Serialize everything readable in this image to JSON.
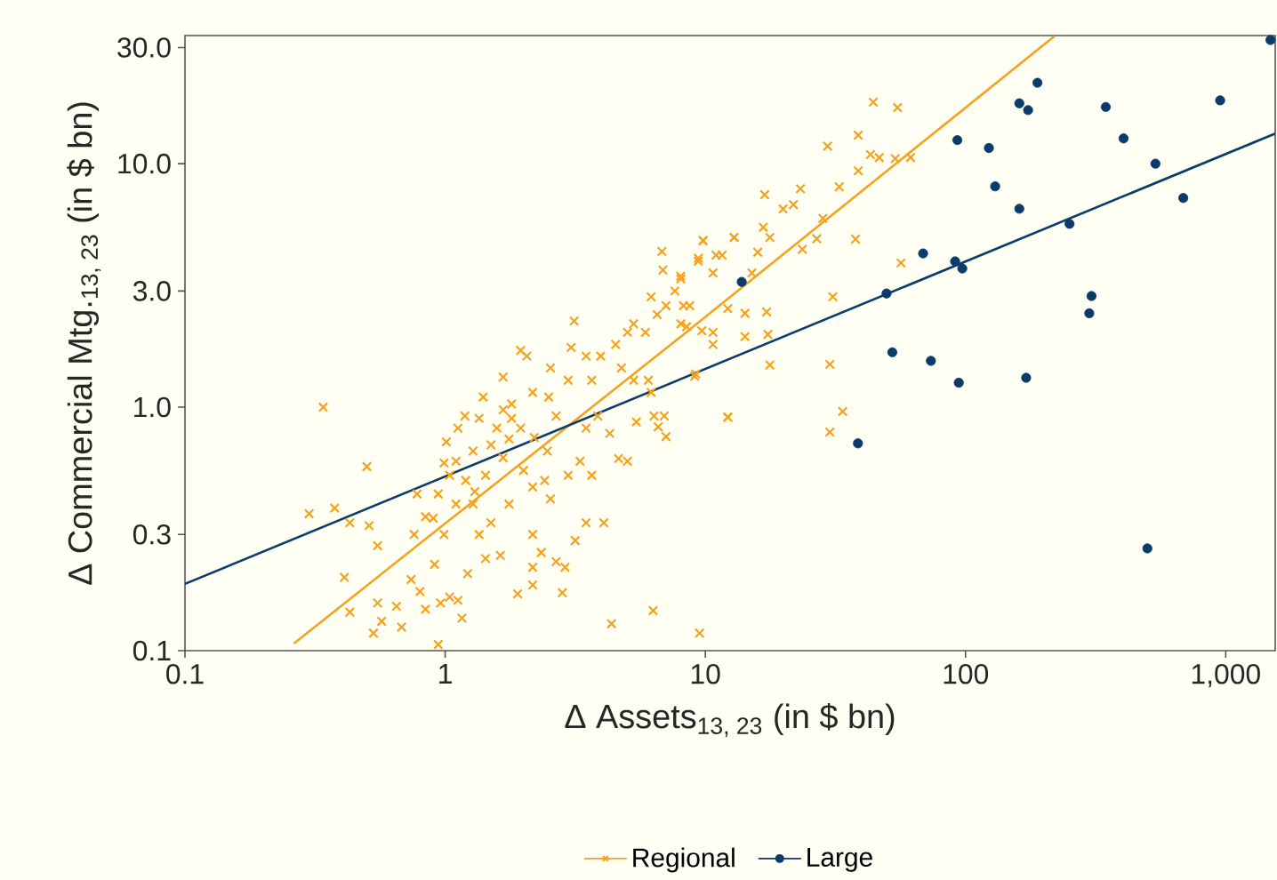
{
  "chart_data": {
    "type": "scatter",
    "xlabel": "Δ Assets$_{13, 23}$ (in $ bn)",
    "ylabel": "Δ Commercial Mtg.$_{13, 23}$ (in $ bn)",
    "log": "xy",
    "xlim": [
      0.1,
      1550
    ],
    "ylim": [
      0.1,
      33.6
    ],
    "xticks": [
      0.1,
      1,
      10,
      100,
      {
        "value": 1000,
        "label": "1,000"
      }
    ],
    "yticks": [
      0.1,
      0.3,
      {
        "value": 1,
        "label": "1.0"
      },
      {
        "value": 3,
        "label": "3.0"
      },
      {
        "value": 10,
        "label": "10.0"
      },
      {
        "value": 30,
        "label": "30.0"
      }
    ],
    "legend": "bottom",
    "series": [
      {
        "name": "Regional",
        "marker": "cross",
        "color": "#f5a21e",
        "x": [
          0.34,
          0.3,
          0.376,
          0.5,
          0.43,
          0.51,
          0.41,
          0.43,
          0.55,
          0.55,
          0.57,
          0.53,
          0.65,
          0.68,
          0.74,
          0.8,
          0.76,
          0.78,
          0.84,
          0.84,
          0.94,
          0.96,
          0.91,
          0.99,
          1.04,
          1.12,
          1.16,
          1.22,
          1.1,
          1.04,
          0.94,
          0.99,
          1.12,
          1.19,
          1.35,
          1.28,
          1.43,
          1.28,
          1.35,
          1.5,
          1.63,
          1.43,
          1.76,
          1.67,
          1.58,
          1.67,
          1.8,
          1.95,
          2.17,
          2.06,
          1.67,
          2.17,
          1.9,
          2.17,
          2.17,
          2.17,
          2.34,
          2.67,
          2.89,
          2.82,
          2.41,
          2.54,
          2.47,
          2.67,
          2.54,
          2.97,
          3.05,
          3.13,
          2.97,
          3.3,
          3.66,
          3.48,
          3.66,
          3.48,
          3.96,
          3.86,
          4.29,
          4.64,
          3.48,
          4.07,
          3.16,
          4.36,
          6.3,
          9.5,
          4.52,
          5.02,
          4.76,
          5.3,
          6.04,
          5.43,
          6.19,
          6.35,
          7.06,
          6.95,
          6.59,
          5.3,
          5.88,
          6.53,
          6.19,
          7.06,
          8.05,
          7.64,
          8.71,
          8.05,
          9.18,
          12.2,
          6.81,
          6.87,
          9.8,
          9.4,
          10.7,
          12.9,
          11.6,
          10.7,
          5.02,
          1.95,
          1.76,
          1.01,
          1.2,
          1.5,
          1.8,
          2.2,
          1.1,
          1.4,
          2.5,
          2.0,
          0.9,
          1.3,
          44.2,
          54.8,
          29.5,
          38.7,
          43.1,
          46.6,
          53.7,
          61.5,
          38.7,
          16.9,
          23.2,
          32.7,
          19.9,
          21.8,
          16.7,
          28.3,
          17.7,
          9.8,
          12.9,
          23.6,
          26.8,
          37.8,
          15.9,
          56.5,
          9.4,
          11.0,
          15.1,
          8.04,
          8.24,
          12.2,
          17.2,
          30.9,
          14.2,
          8.47,
          9.7,
          10.7,
          14.2,
          17.4,
          17.7,
          30.1,
          9.1,
          12.2,
          33.7,
          30.1
        ],
        "values": [
          1.0,
          0.365,
          0.385,
          0.57,
          0.335,
          0.326,
          0.2,
          0.144,
          0.27,
          0.157,
          0.132,
          0.118,
          0.152,
          0.125,
          0.196,
          0.175,
          0.3,
          0.44,
          0.355,
          0.148,
          0.106,
          0.157,
          0.226,
          0.3,
          0.166,
          0.161,
          0.136,
          0.207,
          0.4,
          0.525,
          0.44,
          0.59,
          0.82,
          0.92,
          0.9,
          0.66,
          0.525,
          0.4,
          0.3,
          0.335,
          0.246,
          0.239,
          0.4,
          0.62,
          0.82,
          0.975,
          1.03,
          0.82,
          1.15,
          1.62,
          1.33,
          0.47,
          0.171,
          0.186,
          0.22,
          0.3,
          0.253,
          0.232,
          0.22,
          0.173,
          0.5,
          0.42,
          0.66,
          0.92,
          1.45,
          1.29,
          1.76,
          2.26,
          0.525,
          0.6,
          0.525,
          0.82,
          1.29,
          1.62,
          1.62,
          0.92,
          0.78,
          0.615,
          0.335,
          0.335,
          0.283,
          0.129,
          0.146,
          0.118,
          1.81,
          2.03,
          1.45,
          1.29,
          1.29,
          0.87,
          1.15,
          0.92,
          0.757,
          0.92,
          0.83,
          2.2,
          2.03,
          2.4,
          2.84,
          2.61,
          3.36,
          3.0,
          2.61,
          2.2,
          1.37,
          0.91,
          4.36,
          3.66,
          4.84,
          3.98,
          3.56,
          4.98,
          4.21,
          2.03,
          0.6,
          1.71,
          0.74,
          0.72,
          0.5,
          0.7,
          0.9,
          0.75,
          0.6,
          1.1,
          1.1,
          0.55,
          0.35,
          0.45,
          17.9,
          17.0,
          11.8,
          13.1,
          10.9,
          10.6,
          10.5,
          10.6,
          9.35,
          7.46,
          7.89,
          8.03,
          6.52,
          6.79,
          5.48,
          5.96,
          4.98,
          4.82,
          4.98,
          4.45,
          4.92,
          4.9,
          4.33,
          3.91,
          4.09,
          4.21,
          3.56,
          3.45,
          2.61,
          2.54,
          2.46,
          2.84,
          2.43,
          2.14,
          2.06,
          1.81,
          1.95,
          1.99,
          1.49,
          1.5,
          1.34,
          0.91,
          0.96,
          0.79
        ]
      },
      {
        "name": "Large",
        "marker": "circle",
        "color": "#0b3b6b",
        "x": [
          1486,
          189,
          161,
          174,
          952,
          346,
          93,
          123,
          405,
          537,
          130,
          161,
          687,
          251,
          68.7,
          91.2,
          97.2,
          13.8,
          49.7,
          305,
          299,
          52.3,
          73.6,
          94.2,
          171,
          38.6,
          500
        ],
        "values": [
          32.2,
          21.5,
          17.7,
          16.6,
          18.2,
          17.1,
          12.5,
          11.6,
          12.7,
          10.0,
          8.07,
          6.53,
          7.23,
          5.66,
          4.28,
          3.97,
          3.71,
          3.27,
          2.93,
          2.86,
          2.43,
          1.68,
          1.55,
          1.26,
          1.32,
          0.71,
          0.263
        ]
      },
      {
        "type": "line",
        "marker": "none",
        "color": "#f5a21e",
        "x": [
          0.262,
          7.62,
          219
        ],
        "values": [
          0.107,
          1.86,
          33.3
        ]
      },
      {
        "type": "line",
        "marker": "none",
        "color": "#0b3b6b",
        "x": [
          0.1,
          1550
        ],
        "values": [
          0.188,
          13.3
        ]
      }
    ]
  }
}
